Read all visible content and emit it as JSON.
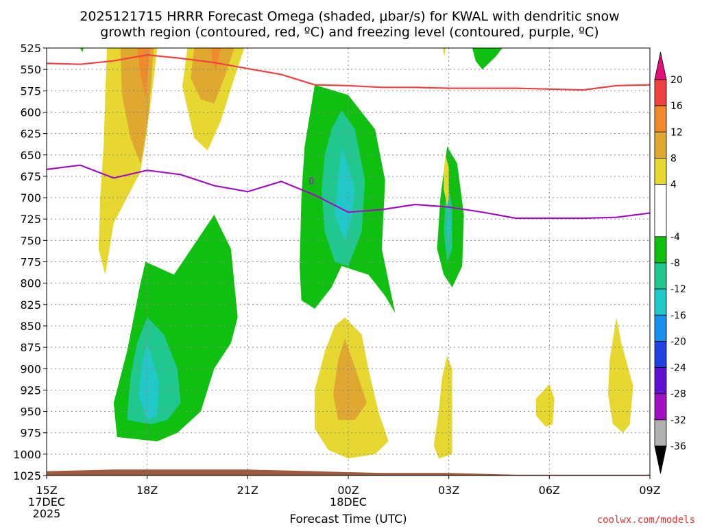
{
  "chart_data": {
    "type": "contour",
    "title_line1": "2025121715 HRRR Forecast Omega (shaded, μbar/s) for KWAL with dendritic snow",
    "title_line2": "growth region (contoured, red, ºC) and freezing level (contoured, purple, ºC)",
    "xlabel": "Forecast Time (UTC)",
    "ylabel": "",
    "credit": "coolwx.com/models",
    "x_ticks": [
      {
        "label": "15Z",
        "hour": 0,
        "sub1": "17DEC",
        "sub2": "2025"
      },
      {
        "label": "18Z",
        "hour": 3,
        "sub1": "",
        "sub2": ""
      },
      {
        "label": "21Z",
        "hour": 6,
        "sub1": "",
        "sub2": ""
      },
      {
        "label": "00Z",
        "hour": 9,
        "sub1": "18DEC",
        "sub2": ""
      },
      {
        "label": "03Z",
        "hour": 12,
        "sub1": "",
        "sub2": ""
      },
      {
        "label": "06Z",
        "hour": 15,
        "sub1": "",
        "sub2": ""
      },
      {
        "label": "09Z",
        "hour": 18,
        "sub1": "",
        "sub2": ""
      }
    ],
    "xlim": [
      0,
      18
    ],
    "pressure_levels": [
      525,
      550,
      575,
      600,
      625,
      650,
      675,
      700,
      725,
      750,
      775,
      800,
      825,
      850,
      875,
      900,
      925,
      950,
      975,
      1000,
      1025
    ],
    "ylim": [
      525,
      1025
    ],
    "colorbar": {
      "ticks": [
        20,
        16,
        12,
        8,
        4,
        -4,
        -8,
        -12,
        -16,
        -20,
        -24,
        -28,
        -32,
        -36
      ],
      "bins": [
        {
          "from": 16,
          "to": 20,
          "color": "#f04040"
        },
        {
          "from": 12,
          "to": 16,
          "color": "#f08a2a"
        },
        {
          "from": 8,
          "to": 12,
          "color": "#e0a830"
        },
        {
          "from": 4,
          "to": 8,
          "color": "#e6d830"
        },
        {
          "from": -4,
          "to": 4,
          "color": "#ffffff"
        },
        {
          "from": -8,
          "to": -4,
          "color": "#10c010"
        },
        {
          "from": -12,
          "to": -8,
          "color": "#20c890"
        },
        {
          "from": -16,
          "to": -12,
          "color": "#20c8c8"
        },
        {
          "from": -20,
          "to": -16,
          "color": "#1890f0"
        },
        {
          "from": -24,
          "to": -20,
          "color": "#2040e0"
        },
        {
          "from": -28,
          "to": -24,
          "color": "#6010d0"
        },
        {
          "from": -32,
          "to": -28,
          "color": "#a010c0"
        },
        {
          "from": -36,
          "to": -32,
          "color": "#b0b0b0"
        }
      ],
      "over_color": "#e0107a",
      "under_color": "#000000"
    },
    "shaded_regions": [
      {
        "name": "yellow-column-18z",
        "color": "#e6d830",
        "points": [
          [
            1.8,
            525
          ],
          [
            3.3,
            525
          ],
          [
            3.2,
            560
          ],
          [
            3.0,
            620
          ],
          [
            2.8,
            670
          ],
          [
            2.4,
            700
          ],
          [
            2.0,
            730
          ],
          [
            1.75,
            790
          ],
          [
            1.55,
            760
          ],
          [
            1.6,
            700
          ],
          [
            1.7,
            640
          ],
          [
            1.75,
            580
          ]
        ]
      },
      {
        "name": "gold-core-18z",
        "color": "#e0a830",
        "points": [
          [
            2.2,
            525
          ],
          [
            3.2,
            525
          ],
          [
            3.05,
            600
          ],
          [
            2.9,
            640
          ],
          [
            2.8,
            660
          ],
          [
            2.5,
            630
          ],
          [
            2.25,
            580
          ]
        ]
      },
      {
        "name": "orange-core-18z",
        "color": "#f08a2a",
        "points": [
          [
            2.7,
            525
          ],
          [
            3.1,
            525
          ],
          [
            3.0,
            560
          ],
          [
            2.95,
            583
          ],
          [
            2.8,
            555
          ]
        ]
      },
      {
        "name": "yellow-column-20z",
        "color": "#e6d830",
        "points": [
          [
            4.2,
            525
          ],
          [
            5.9,
            525
          ],
          [
            5.6,
            560
          ],
          [
            5.2,
            610
          ],
          [
            4.8,
            645
          ],
          [
            4.4,
            630
          ],
          [
            4.05,
            570
          ]
        ]
      },
      {
        "name": "gold-core-20z",
        "color": "#e0a830",
        "points": [
          [
            4.4,
            525
          ],
          [
            5.6,
            525
          ],
          [
            5.3,
            560
          ],
          [
            5.0,
            590
          ],
          [
            4.6,
            585
          ],
          [
            4.3,
            560
          ]
        ]
      },
      {
        "name": "orange-core-20z",
        "color": "#f08a2a",
        "points": [
          [
            4.9,
            525
          ],
          [
            5.2,
            525
          ],
          [
            5.1,
            542
          ],
          [
            5.05,
            552
          ],
          [
            4.95,
            540
          ]
        ]
      },
      {
        "name": "green-upper-04z",
        "color": "#10c010",
        "points": [
          [
            12.7,
            525
          ],
          [
            13.6,
            525
          ],
          [
            13.4,
            535
          ],
          [
            13.0,
            550
          ],
          [
            12.8,
            540
          ]
        ]
      },
      {
        "name": "green-blob-22z",
        "color": "#10c010",
        "points": [
          [
            8.0,
            568
          ],
          [
            9.0,
            580
          ],
          [
            9.8,
            620
          ],
          [
            10.1,
            680
          ],
          [
            10.0,
            760
          ],
          [
            10.4,
            835
          ],
          [
            10.1,
            815
          ],
          [
            9.6,
            790
          ],
          [
            8.8,
            780
          ],
          [
            8.5,
            805
          ],
          [
            8.0,
            830
          ],
          [
            7.6,
            820
          ],
          [
            7.55,
            780
          ],
          [
            7.6,
            700
          ],
          [
            7.7,
            640
          ]
        ]
      },
      {
        "name": "teal-blob-23z",
        "color": "#20c890",
        "points": [
          [
            8.5,
            620
          ],
          [
            8.8,
            598
          ],
          [
            9.2,
            620
          ],
          [
            9.5,
            680
          ],
          [
            9.4,
            740
          ],
          [
            9.0,
            780
          ],
          [
            8.6,
            775
          ],
          [
            8.3,
            740
          ],
          [
            8.2,
            690
          ],
          [
            8.3,
            650
          ]
        ]
      },
      {
        "name": "cyan-core-23z",
        "color": "#20c8c8",
        "points": [
          [
            8.8,
            640
          ],
          [
            9.2,
            690
          ],
          [
            9.1,
            725
          ],
          [
            8.9,
            750
          ],
          [
            8.6,
            720
          ],
          [
            8.7,
            680
          ]
        ]
      },
      {
        "name": "green-blob-18z",
        "color": "#10c010",
        "points": [
          [
            2.95,
            775
          ],
          [
            3.8,
            790
          ],
          [
            5.0,
            720
          ],
          [
            5.5,
            760
          ],
          [
            5.7,
            840
          ],
          [
            5.5,
            870
          ],
          [
            5.0,
            900
          ],
          [
            4.6,
            950
          ],
          [
            3.9,
            975
          ],
          [
            3.3,
            985
          ],
          [
            2.1,
            980
          ],
          [
            2.0,
            940
          ],
          [
            2.4,
            880
          ],
          [
            2.6,
            840
          ],
          [
            2.8,
            800
          ]
        ]
      },
      {
        "name": "teal-blob-18z",
        "color": "#20c890",
        "points": [
          [
            3.0,
            840
          ],
          [
            3.5,
            860
          ],
          [
            3.9,
            900
          ],
          [
            4.0,
            940
          ],
          [
            3.6,
            960
          ],
          [
            3.1,
            965
          ],
          [
            2.4,
            960
          ],
          [
            2.5,
            910
          ],
          [
            2.7,
            870
          ]
        ]
      },
      {
        "name": "cyan-core-18z",
        "color": "#20c8c8",
        "points": [
          [
            3.0,
            870
          ],
          [
            3.35,
            915
          ],
          [
            3.3,
            955
          ],
          [
            3.0,
            960
          ],
          [
            2.75,
            930
          ],
          [
            2.85,
            895
          ]
        ]
      },
      {
        "name": "yellow-blob-23z",
        "color": "#e6d830",
        "points": [
          [
            8.9,
            840
          ],
          [
            9.4,
            860
          ],
          [
            9.6,
            900
          ],
          [
            9.9,
            950
          ],
          [
            10.2,
            985
          ],
          [
            9.8,
            1000
          ],
          [
            9.0,
            1005
          ],
          [
            8.4,
            995
          ],
          [
            8.0,
            970
          ],
          [
            8.0,
            925
          ],
          [
            8.3,
            880
          ],
          [
            8.6,
            850
          ]
        ]
      },
      {
        "name": "gold-core-23z",
        "color": "#e0a830",
        "points": [
          [
            8.9,
            865
          ],
          [
            9.3,
            910
          ],
          [
            9.55,
            940
          ],
          [
            9.2,
            960
          ],
          [
            8.7,
            960
          ],
          [
            8.55,
            930
          ],
          [
            8.7,
            890
          ]
        ]
      },
      {
        "name": "green-blob-03z",
        "color": "#10c010",
        "points": [
          [
            11.95,
            640
          ],
          [
            12.25,
            660
          ],
          [
            12.45,
            720
          ],
          [
            12.4,
            780
          ],
          [
            12.1,
            805
          ],
          [
            11.85,
            790
          ],
          [
            11.65,
            760
          ],
          [
            11.75,
            700
          ]
        ]
      },
      {
        "name": "teal-core-03z",
        "color": "#20c890",
        "points": [
          [
            12.0,
            690
          ],
          [
            12.1,
            710
          ],
          [
            12.1,
            760
          ],
          [
            11.95,
            775
          ],
          [
            11.85,
            740
          ],
          [
            11.9,
            705
          ]
        ]
      },
      {
        "name": "cyan-core-03z",
        "color": "#20c8c8",
        "points": [
          [
            12.0,
            705
          ],
          [
            12.05,
            730
          ],
          [
            12.0,
            755
          ],
          [
            11.95,
            740
          ]
        ]
      },
      {
        "name": "yellow-sliver-02z",
        "color": "#e6d830",
        "points": [
          [
            11.9,
            650
          ],
          [
            12.0,
            665
          ],
          [
            12.0,
            700
          ],
          [
            11.95,
            710
          ],
          [
            11.85,
            690
          ],
          [
            11.85,
            670
          ]
        ]
      },
      {
        "name": "yellow-blob-03z",
        "color": "#e6d830",
        "points": [
          [
            11.95,
            885
          ],
          [
            12.1,
            900
          ],
          [
            12.1,
            960
          ],
          [
            12.1,
            1000
          ],
          [
            11.7,
            1005
          ],
          [
            11.55,
            990
          ],
          [
            11.7,
            950
          ],
          [
            11.8,
            910
          ]
        ]
      },
      {
        "name": "yellow-blob-06z",
        "color": "#e6d830",
        "points": [
          [
            15.0,
            918
          ],
          [
            15.15,
            935
          ],
          [
            15.1,
            965
          ],
          [
            14.9,
            968
          ],
          [
            14.6,
            955
          ],
          [
            14.6,
            935
          ]
        ]
      },
      {
        "name": "yellow-blob-08z",
        "color": "#e6d830",
        "points": [
          [
            17.0,
            840
          ],
          [
            17.15,
            870
          ],
          [
            17.5,
            920
          ],
          [
            17.4,
            965
          ],
          [
            17.2,
            975
          ],
          [
            16.9,
            965
          ],
          [
            16.75,
            930
          ],
          [
            16.8,
            890
          ]
        ]
      },
      {
        "name": "yellow-sliver-02z-top",
        "color": "#e6d830",
        "points": [
          [
            11.82,
            525
          ],
          [
            11.9,
            525
          ],
          [
            11.87,
            535
          ]
        ]
      },
      {
        "name": "green-sliver-16z-top",
        "color": "#10c010",
        "points": [
          [
            1.0,
            525
          ],
          [
            1.1,
            525
          ],
          [
            1.07,
            530
          ]
        ]
      }
    ],
    "contours": [
      {
        "name": "dendritic-red-contour",
        "color": "#f04040",
        "label": "",
        "points": [
          [
            0,
            543
          ],
          [
            1,
            544
          ],
          [
            2,
            540
          ],
          [
            3,
            533
          ],
          [
            4,
            537
          ],
          [
            5,
            542
          ],
          [
            6,
            549
          ],
          [
            7,
            556
          ],
          [
            8,
            568
          ],
          [
            9,
            569
          ],
          [
            10,
            571
          ],
          [
            11,
            571
          ],
          [
            12,
            572
          ],
          [
            13,
            572
          ],
          [
            14,
            572
          ],
          [
            15,
            573
          ],
          [
            16,
            574
          ],
          [
            17,
            569
          ],
          [
            18,
            568
          ]
        ]
      },
      {
        "name": "freezing-level-purple-contour",
        "color": "#a010c0",
        "label": "0",
        "points": [
          [
            0,
            667
          ],
          [
            1,
            662
          ],
          [
            2,
            677
          ],
          [
            3,
            668
          ],
          [
            4,
            673
          ],
          [
            5,
            686
          ],
          [
            6,
            693
          ],
          [
            7,
            681
          ],
          [
            8,
            697
          ],
          [
            9,
            717
          ],
          [
            10,
            714
          ],
          [
            11,
            708
          ],
          [
            12,
            711
          ],
          [
            13,
            717
          ],
          [
            14,
            724
          ],
          [
            15,
            724
          ],
          [
            16,
            724
          ],
          [
            17,
            723
          ],
          [
            18,
            718
          ]
        ]
      }
    ],
    "terrain": {
      "color": "#9c5a3c",
      "points": [
        [
          0,
          1020
        ],
        [
          2,
          1018
        ],
        [
          4,
          1018
        ],
        [
          6,
          1018
        ],
        [
          8,
          1020
        ],
        [
          10,
          1022
        ],
        [
          12,
          1022
        ],
        [
          14,
          1024
        ],
        [
          16,
          1024
        ],
        [
          18,
          1024
        ]
      ]
    }
  }
}
